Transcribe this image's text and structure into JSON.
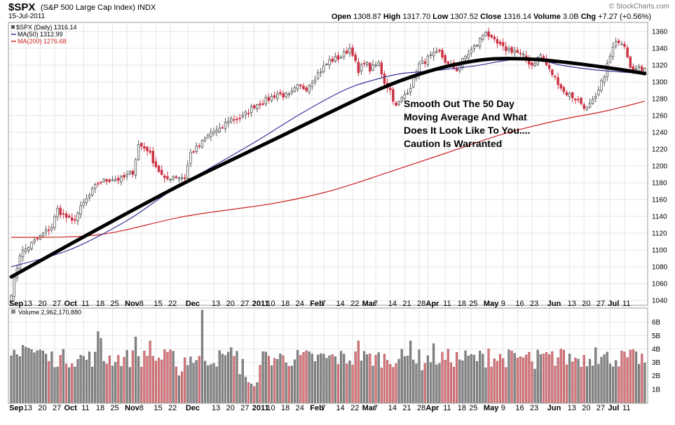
{
  "header": {
    "symbol": "$SPX",
    "description": "(S&P 500 Large Cap Index) INDX",
    "date": "15-Jul-2011",
    "brand": "© StockCharts.com",
    "open_label": "Open",
    "open": "1308.87",
    "high_label": "High",
    "high": "1317.70",
    "low_label": "Low",
    "low": "1307.52",
    "close_label": "Close",
    "close": "1316.14",
    "volume_label": "Volume",
    "volume": "3.0B",
    "chg_label": "Chg",
    "chg": "+7.27 (+0.56%)"
  },
  "legend": {
    "price": "$SPX (Daily) 1316.14",
    "ma50": "MA(50) 1312.99",
    "ma200": "MA(200) 1276.68",
    "volume": "Volume 2,962,170,880"
  },
  "annotation": {
    "lines": [
      "Smooth Out The 50 Day",
      "Moving Average And What",
      "Does It Look Like To You....",
      "Caution Is Warranted"
    ]
  },
  "colors": {
    "up": "#555555",
    "down": "#cc3344",
    "volume_up": "#888888",
    "volume_down": "#d87a80",
    "ma50": "#333399",
    "ma200": "#cc2222",
    "trend": "#000000",
    "grid": "#e6e6e6"
  },
  "chart_data": {
    "type": "candlestick",
    "price_axis": {
      "range": [
        1035,
        1370
      ],
      "ticks": [
        1040,
        1060,
        1080,
        1100,
        1120,
        1140,
        1160,
        1180,
        1200,
        1220,
        1240,
        1260,
        1280,
        1300,
        1320,
        1340,
        1360
      ]
    },
    "volume_axis": {
      "range": [
        0,
        7
      ],
      "ticks": [
        1,
        2,
        3,
        4,
        5,
        6
      ],
      "tick_labels": [
        "1B",
        "2B",
        "3B",
        "4B",
        "5B",
        "6B"
      ]
    },
    "x_axis": {
      "labels": [
        {
          "t": "Sep",
          "d": 0,
          "bold": true
        },
        {
          "t": "13",
          "d": 5
        },
        {
          "t": "20",
          "d": 10
        },
        {
          "t": "27",
          "d": 15
        },
        {
          "t": "Oct",
          "d": 19,
          "bold": true
        },
        {
          "t": "11",
          "d": 25
        },
        {
          "t": "18",
          "d": 30
        },
        {
          "t": "25",
          "d": 35
        },
        {
          "t": "Nov",
          "d": 40,
          "bold": true
        },
        {
          "t": "8",
          "d": 45
        },
        {
          "t": "15",
          "d": 50
        },
        {
          "t": "22",
          "d": 55
        },
        {
          "t": "Dec",
          "d": 61,
          "bold": true
        },
        {
          "t": "13",
          "d": 70
        },
        {
          "t": "20",
          "d": 75
        },
        {
          "t": "27",
          "d": 80
        },
        {
          "t": "2011",
          "d": 84,
          "bold": true
        },
        {
          "t": "10",
          "d": 89
        },
        {
          "t": "18",
          "d": 94
        },
        {
          "t": "24",
          "d": 99
        },
        {
          "t": "Feb",
          "d": 104,
          "bold": true
        },
        {
          "t": "7",
          "d": 108
        },
        {
          "t": "14",
          "d": 113
        },
        {
          "t": "22",
          "d": 118
        },
        {
          "t": "Mar",
          "d": 122,
          "bold": true
        },
        {
          "t": "7",
          "d": 126
        },
        {
          "t": "14",
          "d": 131
        },
        {
          "t": "21",
          "d": 136
        },
        {
          "t": "28",
          "d": 141
        },
        {
          "t": "Apr",
          "d": 144,
          "bold": true
        },
        {
          "t": "11",
          "d": 150
        },
        {
          "t": "18",
          "d": 155
        },
        {
          "t": "25",
          "d": 159
        },
        {
          "t": "May",
          "d": 164,
          "bold": true
        },
        {
          "t": "9",
          "d": 170
        },
        {
          "t": "16",
          "d": 175
        },
        {
          "t": "23",
          "d": 180
        },
        {
          "t": "Jun",
          "d": 186,
          "bold": true
        },
        {
          "t": "13",
          "d": 193
        },
        {
          "t": "20",
          "d": 198
        },
        {
          "t": "27",
          "d": 203
        },
        {
          "t": "Jul",
          "d": 207,
          "bold": true
        },
        {
          "t": "11",
          "d": 212
        }
      ]
    },
    "trading_days": 220,
    "key_closes": [
      [
        0,
        1049
      ],
      [
        3,
        1095
      ],
      [
        8,
        1110
      ],
      [
        14,
        1128
      ],
      [
        16,
        1148
      ],
      [
        21,
        1133
      ],
      [
        25,
        1155
      ],
      [
        30,
        1180
      ],
      [
        35,
        1185
      ],
      [
        38,
        1184
      ],
      [
        42,
        1193
      ],
      [
        44,
        1225
      ],
      [
        47,
        1220
      ],
      [
        50,
        1200
      ],
      [
        53,
        1183
      ],
      [
        56,
        1188
      ],
      [
        60,
        1186
      ],
      [
        62,
        1215
      ],
      [
        65,
        1224
      ],
      [
        69,
        1240
      ],
      [
        72,
        1242
      ],
      [
        75,
        1255
      ],
      [
        80,
        1258
      ],
      [
        84,
        1272
      ],
      [
        88,
        1278
      ],
      [
        92,
        1286
      ],
      [
        96,
        1283
      ],
      [
        99,
        1294
      ],
      [
        102,
        1293
      ],
      [
        106,
        1310
      ],
      [
        110,
        1325
      ],
      [
        114,
        1330
      ],
      [
        117,
        1340
      ],
      [
        118,
        1335
      ],
      [
        120,
        1310
      ],
      [
        122,
        1325
      ],
      [
        124,
        1315
      ],
      [
        127,
        1322
      ],
      [
        129,
        1300
      ],
      [
        131,
        1290
      ],
      [
        133,
        1270
      ],
      [
        135,
        1280
      ],
      [
        138,
        1295
      ],
      [
        141,
        1320
      ],
      [
        144,
        1328
      ],
      [
        148,
        1335
      ],
      [
        151,
        1320
      ],
      [
        154,
        1315
      ],
      [
        157,
        1330
      ],
      [
        161,
        1345
      ],
      [
        164,
        1361
      ],
      [
        166,
        1350
      ],
      [
        170,
        1340
      ],
      [
        174,
        1337
      ],
      [
        177,
        1330
      ],
      [
        180,
        1320
      ],
      [
        183,
        1332
      ],
      [
        186,
        1314
      ],
      [
        189,
        1300
      ],
      [
        191,
        1288
      ],
      [
        193,
        1285
      ],
      [
        196,
        1278
      ],
      [
        199,
        1268
      ],
      [
        202,
        1280
      ],
      [
        204,
        1298
      ],
      [
        206,
        1320
      ],
      [
        208,
        1340
      ],
      [
        210,
        1350
      ],
      [
        212,
        1345
      ],
      [
        214,
        1320
      ],
      [
        216,
        1315
      ],
      [
        219,
        1316
      ]
    ],
    "ma50_points": [
      [
        0,
        1080
      ],
      [
        20,
        1100
      ],
      [
        40,
        1135
      ],
      [
        55,
        1170
      ],
      [
        70,
        1200
      ],
      [
        85,
        1230
      ],
      [
        100,
        1262
      ],
      [
        115,
        1290
      ],
      [
        125,
        1302
      ],
      [
        135,
        1310
      ],
      [
        145,
        1313
      ],
      [
        160,
        1319
      ],
      [
        170,
        1325
      ],
      [
        180,
        1328
      ],
      [
        190,
        1320
      ],
      [
        200,
        1315
      ],
      [
        210,
        1312
      ],
      [
        219,
        1310
      ]
    ],
    "ma200_points": [
      [
        0,
        1115
      ],
      [
        30,
        1118
      ],
      [
        60,
        1140
      ],
      [
        90,
        1155
      ],
      [
        110,
        1170
      ],
      [
        130,
        1192
      ],
      [
        150,
        1215
      ],
      [
        170,
        1238
      ],
      [
        190,
        1255
      ],
      [
        205,
        1265
      ],
      [
        219,
        1277
      ]
    ],
    "trend_points": [
      [
        0,
        1068
      ],
      [
        30,
        1125
      ],
      [
        60,
        1180
      ],
      [
        90,
        1230
      ],
      [
        120,
        1280
      ],
      [
        135,
        1302
      ],
      [
        150,
        1318
      ],
      [
        165,
        1327
      ],
      [
        180,
        1327
      ],
      [
        195,
        1322
      ],
      [
        210,
        1315
      ],
      [
        219,
        1310
      ]
    ],
    "volume_spikes": [
      [
        30,
        5.3
      ],
      [
        31,
        4.8
      ],
      [
        43,
        4.9
      ],
      [
        48,
        4.6
      ],
      [
        66,
        6.9
      ],
      [
        76,
        4.1
      ],
      [
        120,
        4.6
      ],
      [
        138,
        4.6
      ],
      [
        146,
        4.4
      ],
      [
        165,
        4.0
      ],
      [
        190,
        4.0
      ],
      [
        202,
        4.1
      ]
    ],
    "volume_dips": [
      [
        58,
        2.0
      ],
      [
        59,
        2.3
      ],
      [
        79,
        2.1
      ],
      [
        81,
        1.9
      ],
      [
        82,
        1.5
      ],
      [
        83,
        1.4
      ],
      [
        84,
        1.2
      ],
      [
        85,
        1.5
      ],
      [
        142,
        2.4
      ],
      [
        181,
        2.5
      ]
    ]
  }
}
